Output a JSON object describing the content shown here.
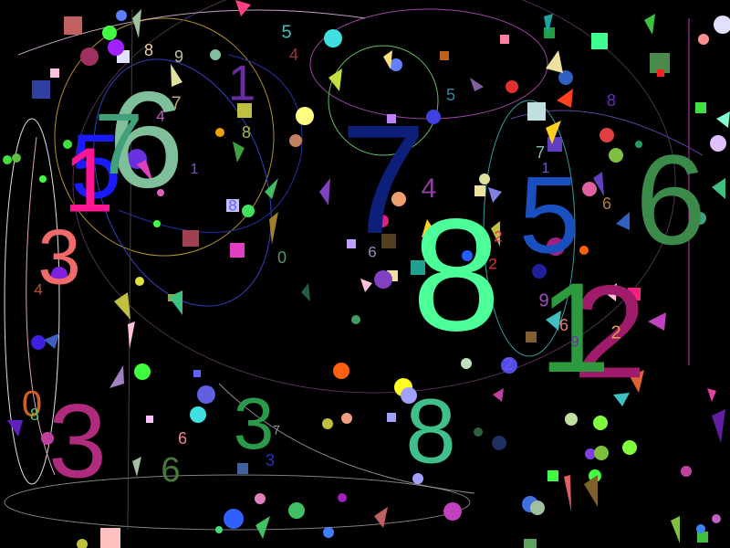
{
  "background": "#000000",
  "palette": {
    "big_six_left": "#7fbf9a",
    "big_seven": "#0d1f78",
    "big_eight": "#4dff99",
    "big_five": "#1a4fbf",
    "big_six_right": "#3b8a4a",
    "big_twelve_a": "#2e9a3e",
    "big_twelve_b": "#a01c6a",
    "three_left": "#f06a6a",
    "three_bottom": "#b02a7e",
    "three_green": "#2a9a4a",
    "eight_bottom": "#3fbf8a",
    "five_left": "#1a1aff"
  },
  "digits": [
    {
      "id": "big-6-left",
      "text": "6",
      "color": "#7fbf9a"
    },
    {
      "id": "big-5-left",
      "text": "5",
      "color": "#1a1aff"
    },
    {
      "id": "big-7-overlay",
      "text": "7",
      "color": "#3fa07a"
    },
    {
      "id": "big-1-magenta",
      "text": "1",
      "color": "#ff1493"
    },
    {
      "id": "big-7-center",
      "text": "7",
      "color": "#0d1f78"
    },
    {
      "id": "big-8-center",
      "text": "8",
      "color": "#4dff99"
    },
    {
      "id": "big-5-right",
      "text": "5",
      "color": "#1a4fbf"
    },
    {
      "id": "big-6-right",
      "text": "6",
      "color": "#3b8a4a"
    },
    {
      "id": "big-1-green",
      "text": "1",
      "color": "#2e9a3e"
    },
    {
      "id": "big-2-magenta",
      "text": "2",
      "color": "#a01c6a"
    },
    {
      "id": "big-3-left",
      "text": "3",
      "color": "#f06a6a"
    },
    {
      "id": "big-3-bottom",
      "text": "3",
      "color": "#b02a7e"
    },
    {
      "id": "mid-3-green",
      "text": "3",
      "color": "#2a9a4a"
    },
    {
      "id": "mid-8-bottom",
      "text": "8",
      "color": "#3fbf8a"
    },
    {
      "id": "small-1-purple",
      "text": "1",
      "color": "#6a2aa0"
    },
    {
      "id": "small-8-top",
      "text": "8",
      "color": "#e8d0a0"
    },
    {
      "id": "small-9-top",
      "text": "9",
      "color": "#c0c0a0"
    },
    {
      "id": "small-5-top",
      "text": "5",
      "color": "#3fbfbf"
    },
    {
      "id": "small-4-top",
      "text": "4",
      "color": "#a03040"
    },
    {
      "id": "small-4-left",
      "text": "4",
      "color": "#c060c0"
    },
    {
      "id": "small-7-left",
      "text": "7",
      "color": "#c0a070"
    },
    {
      "id": "small-8-green",
      "text": "8",
      "color": "#a0c040"
    },
    {
      "id": "small-1-left",
      "text": "1",
      "color": "#8050c0"
    },
    {
      "id": "small-8-blue",
      "text": "8",
      "color": "#6060ff"
    },
    {
      "id": "small-0",
      "text": "0",
      "color": "#4a9a6a"
    },
    {
      "id": "small-5-mid",
      "text": "5",
      "color": "#2a8a9a"
    },
    {
      "id": "small-4-mid",
      "text": "4",
      "color": "#9040a0"
    },
    {
      "id": "small-6-mid",
      "text": "6",
      "color": "#9090c0"
    },
    {
      "id": "small-7-right",
      "text": "7",
      "color": "#7fbfbf"
    },
    {
      "id": "small-1-right",
      "text": "1",
      "color": "#6060c0"
    },
    {
      "id": "small-8-right",
      "text": "8",
      "color": "#6a2ac0"
    },
    {
      "id": "small-6-right",
      "text": "6",
      "color": "#b08030"
    },
    {
      "id": "small-2-red",
      "text": "2",
      "color": "#e03060"
    },
    {
      "id": "small-2-red-b",
      "text": "2",
      "color": "#e03030"
    },
    {
      "id": "small-9-purple",
      "text": "9",
      "color": "#a050c0"
    },
    {
      "id": "small-6-salmon",
      "text": "6",
      "color": "#e08070"
    },
    {
      "id": "small-9-violet",
      "text": "9",
      "color": "#6a30a0"
    },
    {
      "id": "small-2-orange",
      "text": "2",
      "color": "#e0a040"
    },
    {
      "id": "small-4-orange",
      "text": "4",
      "color": "#c05020"
    },
    {
      "id": "small-0-orange",
      "text": "0",
      "color": "#d06020"
    },
    {
      "id": "small-8-lime",
      "text": "8",
      "color": "#60c060"
    },
    {
      "id": "small-6-pink",
      "text": "6",
      "color": "#f08090"
    },
    {
      "id": "small-6-olive",
      "text": "6",
      "color": "#4a7a3a"
    },
    {
      "id": "small-3-blue",
      "text": "3",
      "color": "#3030c0"
    },
    {
      "id": "small-2-violet",
      "text": "2",
      "color": "#8050ff"
    },
    {
      "id": "small-7-bottom",
      "text": "7",
      "color": "#9a9a9a"
    }
  ]
}
